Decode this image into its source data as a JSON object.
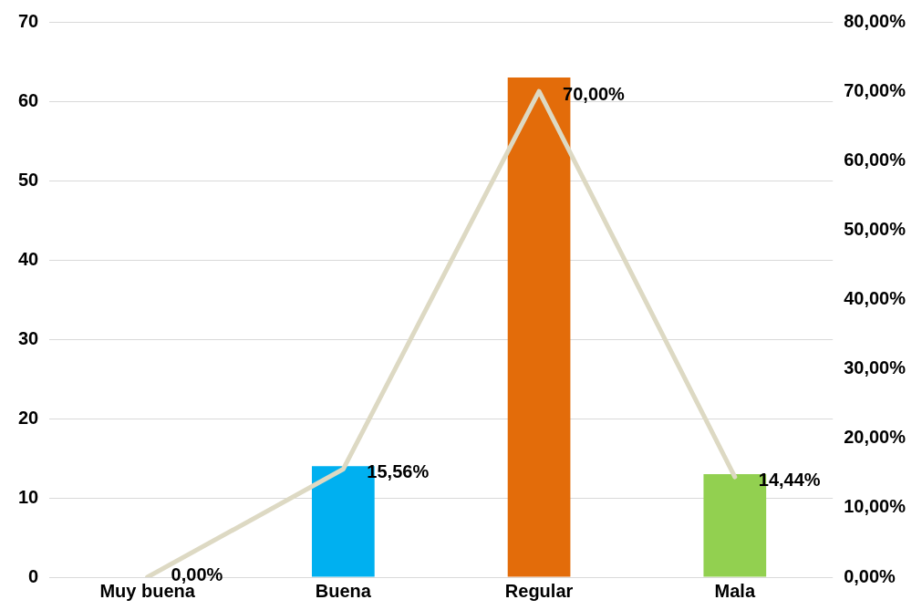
{
  "chart_data": {
    "type": "bar",
    "categories": [
      "Muy buena",
      "Buena",
      "Regular",
      "Mala"
    ],
    "series": [
      {
        "colors": [
          "#00b0f0",
          "#00b0f0",
          "#e36c0a",
          "#92d050"
        ],
        "values": [
          0,
          14,
          63,
          13
        ]
      },
      {
        "type": "line",
        "axis": "y2",
        "color": "#ddd9c3",
        "values": [
          0,
          15.56,
          70,
          14.44
        ],
        "value_labels": [
          "0,00%",
          "15,56%",
          "70,00%",
          "14,44%"
        ]
      }
    ],
    "ylim": [
      0,
      70
    ],
    "yticks": [
      0,
      10,
      20,
      30,
      40,
      50,
      60,
      70
    ],
    "y2lim": [
      0,
      80
    ],
    "y2ticks": [
      {
        "value": 0,
        "label": "0,00%"
      },
      {
        "value": 10,
        "label": "10,00%"
      },
      {
        "value": 20,
        "label": "20,00%"
      },
      {
        "value": 30,
        "label": "30,00%"
      },
      {
        "value": 40,
        "label": "40,00%"
      },
      {
        "value": 50,
        "label": "50,00%"
      },
      {
        "value": 60,
        "label": "60,00%"
      },
      {
        "value": 70,
        "label": "70,00%"
      },
      {
        "value": 80,
        "label": "80,00%"
      }
    ],
    "grid": "y",
    "marker": "none",
    "line_style": "solid"
  }
}
